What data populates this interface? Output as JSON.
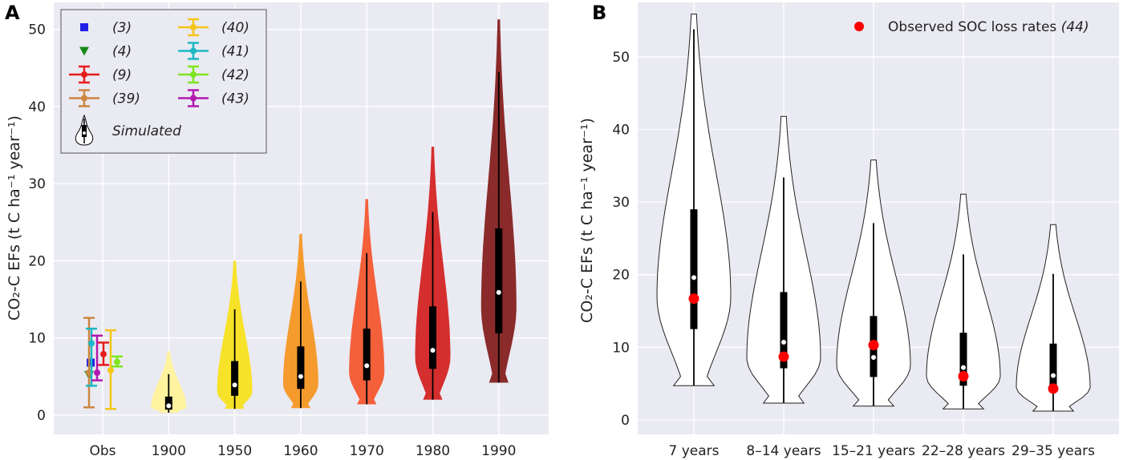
{
  "chart_data": [
    {
      "panel": "A",
      "type": "violin",
      "ylabel": "CO₂-C EFs (t C ha⁻¹ year⁻¹)",
      "ylim": [
        -2.5,
        53.5
      ],
      "yticks": [
        0,
        10,
        20,
        30,
        40,
        50
      ],
      "categories": [
        "Obs",
        "1900",
        "1950",
        "1960",
        "1970",
        "1980",
        "1990"
      ],
      "grid": true,
      "legend_position": "top-left",
      "legend": [
        {
          "label": "(3)",
          "marker": "square",
          "color": "#1f1fe6"
        },
        {
          "label": "(4)",
          "marker": "triangle-down",
          "color": "#178a17"
        },
        {
          "label": "(9)",
          "marker": "errorbar",
          "color": "#e61d1d"
        },
        {
          "label": "(39)",
          "marker": "errorbar",
          "color": "#cd853f"
        },
        {
          "label": "(40)",
          "marker": "errorbar",
          "color": "#f5c518"
        },
        {
          "label": "(41)",
          "marker": "errorbar",
          "color": "#1ab8c4"
        },
        {
          "label": "(42)",
          "marker": "errorbar",
          "color": "#7fe61d"
        },
        {
          "label": "(43)",
          "marker": "errorbar",
          "color": "#b019b0"
        },
        {
          "label": "Simulated",
          "marker": "violin",
          "color": "#ffffff"
        }
      ],
      "observations": [
        {
          "ref": "(3)",
          "color": "#1f1fe6",
          "value": 6.8
        },
        {
          "ref": "(4)",
          "color": "#178a17",
          "value": 5.2
        },
        {
          "ref": "(9)",
          "color": "#e61d1d",
          "value": 7.9,
          "low": 6.5,
          "high": 9.4
        },
        {
          "ref": "(39)",
          "color": "#cd853f",
          "value": 5.5,
          "low": 1.0,
          "high": 12.6
        },
        {
          "ref": "(40)",
          "color": "#f5c518",
          "value": 5.8,
          "low": 0.8,
          "high": 11.0
        },
        {
          "ref": "(41)",
          "color": "#1ab8c4",
          "value": 9.3,
          "low": 3.8,
          "high": 11.2
        },
        {
          "ref": "(42)",
          "color": "#7fe61d",
          "value": 6.9,
          "low": 6.3,
          "high": 7.6
        },
        {
          "ref": "(43)",
          "color": "#b019b0",
          "value": 5.5,
          "low": 4.5,
          "high": 10.3
        }
      ],
      "violins": [
        {
          "category": "1900",
          "color": "#fff3a0",
          "min": 0.3,
          "q1": 0.7,
          "median": 1.2,
          "q3": 2.4,
          "whisker_low": 0.3,
          "whisker_high": 5.3,
          "max": 8.3,
          "mode": 1.0
        },
        {
          "category": "1950",
          "color": "#f7e22a",
          "min": 0.8,
          "q1": 2.5,
          "median": 3.9,
          "q3": 7.0,
          "whisker_low": 0.8,
          "whisker_high": 13.7,
          "max": 20.0,
          "mode": 3.0
        },
        {
          "category": "1960",
          "color": "#f59b2e",
          "min": 0.9,
          "q1": 3.4,
          "median": 5.0,
          "q3": 8.9,
          "whisker_low": 0.9,
          "whisker_high": 17.3,
          "max": 23.5,
          "mode": 4.0
        },
        {
          "category": "1970",
          "color": "#f4603a",
          "min": 1.4,
          "q1": 4.5,
          "median": 6.4,
          "q3": 11.2,
          "whisker_low": 1.4,
          "whisker_high": 21.0,
          "max": 28.0,
          "mode": 5.5
        },
        {
          "category": "1980",
          "color": "#d52e2e",
          "min": 2.0,
          "q1": 6.0,
          "median": 8.4,
          "q3": 14.1,
          "whisker_low": 2.0,
          "whisker_high": 26.3,
          "max": 34.8,
          "mode": 7.5
        },
        {
          "category": "1990",
          "color": "#8a2a2a",
          "min": 4.2,
          "q1": 10.6,
          "median": 15.9,
          "q3": 24.2,
          "whisker_low": 4.2,
          "whisker_high": 44.5,
          "max": 51.3,
          "mode": 14.0
        }
      ]
    },
    {
      "panel": "B",
      "type": "violin",
      "ylabel": "CO₂-C EFs (t C ha⁻¹ year⁻¹)",
      "ylim": [
        -2.0,
        57.5
      ],
      "yticks": [
        0,
        10,
        20,
        30,
        40,
        50
      ],
      "categories": [
        "7 years",
        "8–14 years",
        "15–21 years",
        "22–28 years",
        "29–35 years"
      ],
      "grid": true,
      "legend_position": "top-right",
      "legend_label": "Observed SOC loss rates",
      "legend_ref": "(44)",
      "violins": [
        {
          "category": "7 years",
          "min": 4.7,
          "q1": 12.5,
          "median": 19.6,
          "q3": 29.0,
          "whisker_low": 4.7,
          "whisker_high": 53.8,
          "max": 55.9,
          "mode": 17.0,
          "observed": 16.7
        },
        {
          "category": "8–14 years",
          "min": 2.3,
          "q1": 7.1,
          "median": 10.7,
          "q3": 17.6,
          "whisker_low": 2.3,
          "whisker_high": 33.4,
          "max": 41.8,
          "mode": 8.5,
          "observed": 8.7
        },
        {
          "category": "15–21 years",
          "min": 1.9,
          "q1": 5.9,
          "median": 8.6,
          "q3": 14.3,
          "whisker_low": 1.9,
          "whisker_high": 27.1,
          "max": 35.8,
          "mode": 7.5,
          "observed": 10.3
        },
        {
          "category": "22–28 years",
          "min": 1.5,
          "q1": 4.7,
          "median": 7.2,
          "q3": 12.0,
          "whisker_low": 1.5,
          "whisker_high": 22.8,
          "max": 31.1,
          "mode": 6.0,
          "observed": 6.0
        },
        {
          "category": "29–35 years",
          "min": 1.2,
          "q1": 3.9,
          "median": 6.1,
          "q3": 10.5,
          "whisker_low": 1.2,
          "whisker_high": 20.1,
          "max": 26.9,
          "mode": 4.5,
          "observed": 4.3
        }
      ]
    }
  ],
  "panel_labels": {
    "a": "A",
    "b": "B"
  },
  "colors": {
    "background": "#eaeaf2",
    "grid": "#ffffff",
    "observed_dot": "#ff0000"
  }
}
